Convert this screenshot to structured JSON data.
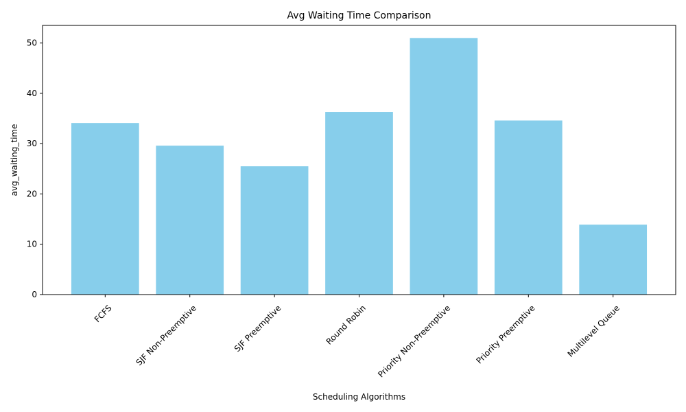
{
  "chart_data": {
    "type": "bar",
    "title": "Avg Waiting Time Comparison",
    "xlabel": "Scheduling Algorithms",
    "ylabel": "avg_waiting_time",
    "categories": [
      "FCFS",
      "SJF Non-Preemptive",
      "SJF Preemptive",
      "Round Robin",
      "Priority Non-Preemptive",
      "Priority Preemptive",
      "Multilevel Queue"
    ],
    "values": [
      34.1,
      29.6,
      25.5,
      36.3,
      51.0,
      34.6,
      13.9
    ],
    "ylim": [
      0,
      53.5
    ],
    "yticks": [
      0,
      10,
      20,
      30,
      40,
      50
    ],
    "bar_color": "#87CEEB",
    "grid": false
  }
}
